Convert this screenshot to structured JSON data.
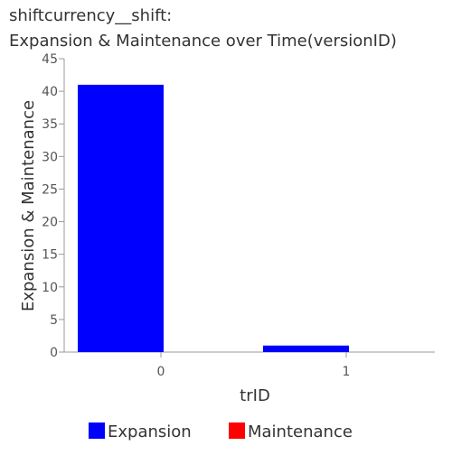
{
  "chart_data": {
    "type": "bar",
    "title_lines": [
      "shiftcurrency__shift:",
      "Expansion & Maintenance over Time(versionID)"
    ],
    "xlabel": "trID",
    "ylabel": "Expansion & Maintenance",
    "categories": [
      "0",
      "1"
    ],
    "series": [
      {
        "name": "Expansion",
        "color": "#0000ff",
        "values": [
          41,
          1
        ]
      },
      {
        "name": "Maintenance",
        "color": "#ff0000",
        "values": [
          0,
          0
        ]
      }
    ],
    "ylim": [
      0,
      45
    ],
    "yticks": [
      "0",
      "5",
      "10",
      "15",
      "20",
      "25",
      "30",
      "35",
      "40",
      "45"
    ],
    "grid": false,
    "legend_position": "bottom"
  }
}
